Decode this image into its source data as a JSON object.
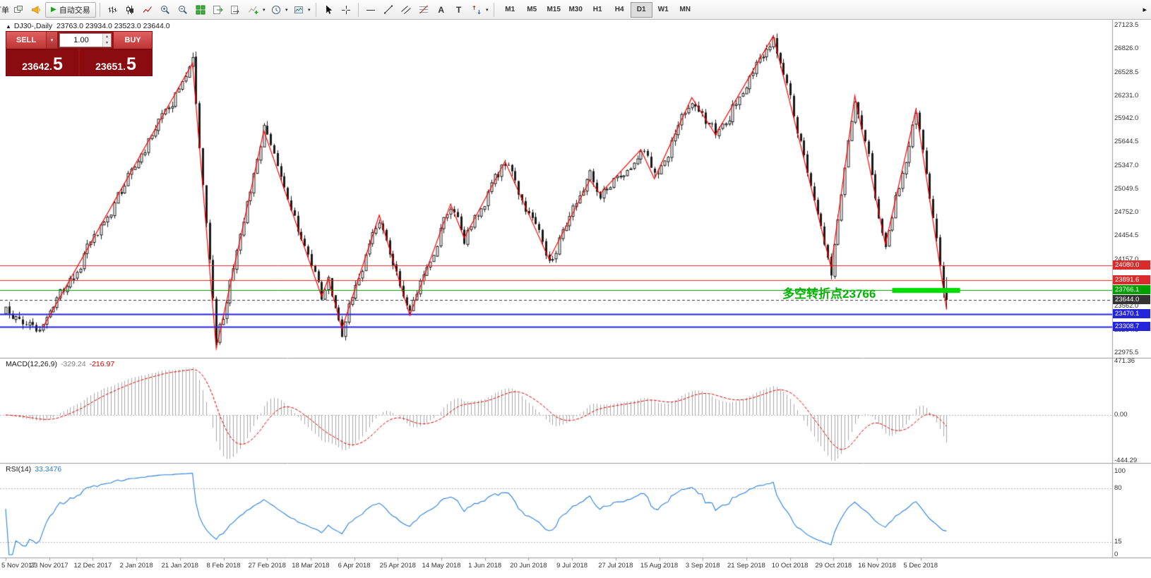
{
  "toolbar": {
    "orders_label": "订单",
    "autotrade_label": "自动交易",
    "timeframes": [
      "M1",
      "M5",
      "M15",
      "M30",
      "H1",
      "H4",
      "D1",
      "W1",
      "MN"
    ],
    "active_timeframe": "D1"
  },
  "icons": {
    "dropdown": "▾",
    "play": "▶",
    "overflow": "▸",
    "symbol_marker": "▲",
    "text_tool": "A",
    "label_tool": "T",
    "spin_up": "▲",
    "spin_down": "▼"
  },
  "trade_panel": {
    "sell_label": "SELL",
    "buy_label": "BUY",
    "sell_price": "23642.",
    "sell_price_big": "5",
    "buy_price": "23651.",
    "buy_price_big": "5",
    "volume": "1.00"
  },
  "chart": {
    "symbol_period": "DJ30-,Daily",
    "ohlc": "23763.0 23934.0 23523.0 23644.0"
  },
  "annotation": {
    "text": "多空转折点23766",
    "color": "#00b400"
  },
  "price_axis": {
    "ticks": [
      "27123.5",
      "26826.0",
      "26528.5",
      "26231.0",
      "25942.0",
      "25644.5",
      "25347.0",
      "25049.5",
      "24752.0",
      "24454.5",
      "24157.0",
      "23859.5",
      "23562.0",
      "23264.5",
      "22975.5"
    ]
  },
  "date_axis": [
    "5 Nov 2017",
    "23 Nov 2017",
    "12 Dec 2017",
    "2 Jan 2018",
    "21 Jan 2018",
    "8 Feb 2018",
    "27 Feb 2018",
    "18 Mar 2018",
    "6 Apr 2018",
    "25 Apr 2018",
    "14 May 2018",
    "1 Jun 2018",
    "20 Jun 2018",
    "9 Jul 2018",
    "27 Jul 2018",
    "15 Aug 2018",
    "3 Sep 2018",
    "21 Sep 2018",
    "10 Oct 2018",
    "29 Oct 2018",
    "16 Nov 2018",
    "5 Dec 2018"
  ],
  "macd": {
    "name": "MACD(12,26,9)",
    "value_main": "-329.24",
    "value_signal": "-216.97",
    "axis_ticks": [
      {
        "v": 471.36,
        "label": "471.36"
      },
      {
        "v": 0,
        "label": "0.00"
      },
      {
        "v": -444.29,
        "label": "-444.29"
      }
    ],
    "histogram_color": "#a8a8a8",
    "signal_color": "#e00000"
  },
  "rsi": {
    "name": "RSI(14)",
    "value": "33.3476",
    "axis_ticks": [
      {
        "v": 100,
        "label": "100"
      },
      {
        "v": 80,
        "label": "80"
      },
      {
        "v": 15,
        "label": "15"
      },
      {
        "v": 0,
        "label": "0"
      }
    ],
    "levels": [
      80,
      15
    ],
    "line_color": "#2a7fde"
  },
  "chart_data": {
    "type": "candlestick",
    "symbol": "DJ30-",
    "period": "Daily",
    "last_candle": {
      "o": 23763.0,
      "h": 23934.0,
      "l": 23523.0,
      "c": 23644.0
    },
    "candle_count": 278,
    "price_range": [
      22930,
      27195
    ],
    "zigzag_color": "#ff0000",
    "zigzag": [
      [
        11,
        23300
      ],
      [
        55,
        26645
      ],
      [
        62,
        23030
      ],
      [
        76,
        25790
      ],
      [
        93,
        23690
      ],
      [
        95,
        23915
      ],
      [
        99,
        23280
      ],
      [
        110,
        24720
      ],
      [
        119,
        23450
      ],
      [
        131,
        24860
      ],
      [
        135,
        24430
      ],
      [
        147,
        25400
      ],
      [
        160,
        24160
      ],
      [
        172,
        25165
      ],
      [
        175,
        24990
      ],
      [
        187,
        25550
      ],
      [
        191,
        25180
      ],
      [
        202,
        26210
      ],
      [
        209,
        25740
      ],
      [
        226,
        26990
      ],
      [
        243,
        24060
      ],
      [
        250,
        26230
      ],
      [
        259,
        24350
      ],
      [
        268,
        26060
      ],
      [
        277,
        23530
      ]
    ],
    "hlines": [
      {
        "price": 24080.0,
        "label": "24080.0",
        "color": "#d92b2b",
        "width": 1,
        "style": "solid"
      },
      {
        "price": 23891.6,
        "label": "23891.6",
        "color": "#d92b2b",
        "width": 1,
        "style": "solid"
      },
      {
        "price": 23766.1,
        "label": "23766.1",
        "color": "#00a000",
        "width": 1,
        "style": "solid"
      },
      {
        "price": 23644.0,
        "label": "23644.0",
        "color": "#333333",
        "width": 1,
        "style": "dash",
        "is_current": true
      },
      {
        "price": 23470.1,
        "label": "23470.1",
        "color": "#2424dd",
        "width": 2,
        "style": "solid"
      },
      {
        "price": 23308.7,
        "label": "23308.7",
        "color": "#2424dd",
        "width": 2,
        "style": "solid"
      }
    ],
    "highlight_bar": {
      "price": 23766.1,
      "i1": 261,
      "i2": 281,
      "color": "#00dd00"
    }
  }
}
